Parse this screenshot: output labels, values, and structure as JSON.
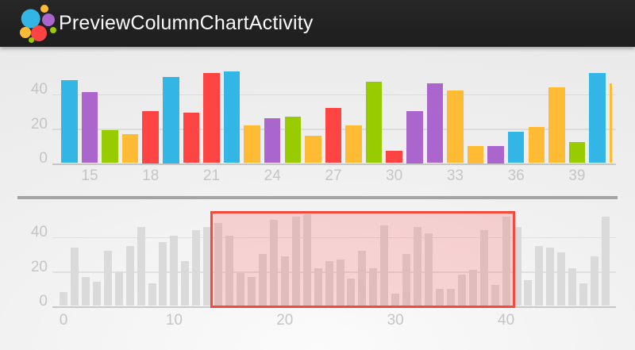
{
  "app": {
    "title": "PreviewColumnChartActivity"
  },
  "palette": {
    "blue": "#33B5E5",
    "violet": "#AA66CC",
    "green": "#99CC00",
    "orange": "#FFBB33",
    "red": "#FF4444",
    "preview_bar": "#dadada",
    "selection_border": "#f4493c",
    "selection_fill": "rgba(255,68,68,0.20)",
    "titlebar_bg": "#222222",
    "axis_text": "#c5c5c5",
    "divider": "#a4a4a4"
  },
  "columns": [
    {
      "x": 0,
      "value": 8,
      "color": null
    },
    {
      "x": 1,
      "value": 34,
      "color": null
    },
    {
      "x": 2,
      "value": 17,
      "color": null
    },
    {
      "x": 3,
      "value": 14,
      "color": null
    },
    {
      "x": 4,
      "value": 32,
      "color": null
    },
    {
      "x": 5,
      "value": 20,
      "color": null
    },
    {
      "x": 6,
      "value": 35,
      "color": null
    },
    {
      "x": 7,
      "value": 46,
      "color": null
    },
    {
      "x": 8,
      "value": 13,
      "color": null
    },
    {
      "x": 9,
      "value": 37,
      "color": null
    },
    {
      "x": 10,
      "value": 41,
      "color": null
    },
    {
      "x": 11,
      "value": 26,
      "color": null
    },
    {
      "x": 12,
      "value": 44,
      "color": null
    },
    {
      "x": 13,
      "value": 46,
      "color": null
    },
    {
      "x": 14,
      "value": 48,
      "color": "blue"
    },
    {
      "x": 15,
      "value": 41,
      "color": "violet"
    },
    {
      "x": 16,
      "value": 19,
      "color": "green"
    },
    {
      "x": 17,
      "value": 17,
      "color": "orange"
    },
    {
      "x": 18,
      "value": 30,
      "color": "red"
    },
    {
      "x": 19,
      "value": 50,
      "color": "blue"
    },
    {
      "x": 20,
      "value": 29,
      "color": "red"
    },
    {
      "x": 21,
      "value": 52,
      "color": "red"
    },
    {
      "x": 22,
      "value": 53,
      "color": "blue"
    },
    {
      "x": 23,
      "value": 22,
      "color": "orange"
    },
    {
      "x": 24,
      "value": 26,
      "color": "violet"
    },
    {
      "x": 25,
      "value": 27,
      "color": "green"
    },
    {
      "x": 26,
      "value": 16,
      "color": "orange"
    },
    {
      "x": 27,
      "value": 32,
      "color": "red"
    },
    {
      "x": 28,
      "value": 22,
      "color": "orange"
    },
    {
      "x": 29,
      "value": 47,
      "color": "green"
    },
    {
      "x": 30,
      "value": 7,
      "color": "red"
    },
    {
      "x": 31,
      "value": 30,
      "color": "violet"
    },
    {
      "x": 32,
      "value": 46,
      "color": "violet"
    },
    {
      "x": 33,
      "value": 42,
      "color": "orange"
    },
    {
      "x": 34,
      "value": 10,
      "color": "orange"
    },
    {
      "x": 35,
      "value": 10,
      "color": "violet"
    },
    {
      "x": 36,
      "value": 18,
      "color": "blue"
    },
    {
      "x": 37,
      "value": 21,
      "color": "orange"
    },
    {
      "x": 38,
      "value": 44,
      "color": "orange"
    },
    {
      "x": 39,
      "value": 12,
      "color": "green"
    },
    {
      "x": 40,
      "value": 52,
      "color": "blue"
    },
    {
      "x": 41,
      "value": 46,
      "color": "orange"
    },
    {
      "x": 42,
      "value": 15,
      "color": null
    },
    {
      "x": 43,
      "value": 35,
      "color": null
    },
    {
      "x": 44,
      "value": 34,
      "color": null
    },
    {
      "x": 45,
      "value": 31,
      "color": null
    },
    {
      "x": 46,
      "value": 22,
      "color": null
    },
    {
      "x": 47,
      "value": 13,
      "color": null
    },
    {
      "x": 48,
      "value": 29,
      "color": null
    },
    {
      "x": 49,
      "value": 52,
      "color": null
    }
  ],
  "chart_data": [
    {
      "type": "bar",
      "name": "main-column-chart",
      "title": "",
      "xlabel": "",
      "ylabel": "",
      "x_ticks": [
        15,
        18,
        21,
        24,
        27,
        30,
        33,
        36,
        39
      ],
      "y_ticks": [
        0,
        20,
        40
      ],
      "ylim": [
        0,
        55
      ],
      "visible_x_range": [
        13.3,
        40.8
      ],
      "grid": "horizontal",
      "legend": "none",
      "columns_source": "columns"
    },
    {
      "type": "bar",
      "name": "preview-column-chart",
      "title": "",
      "xlabel": "",
      "ylabel": "",
      "x_ticks": [
        0,
        10,
        20,
        30,
        40
      ],
      "y_ticks": [
        0,
        20,
        40
      ],
      "ylim": [
        0,
        55
      ],
      "xlim": [
        -0.5,
        49.5
      ],
      "selection_x": [
        13.3,
        40.8
      ],
      "bar_style": "gray-preview",
      "grid": "horizontal",
      "legend": "none",
      "columns_source": "columns"
    }
  ]
}
